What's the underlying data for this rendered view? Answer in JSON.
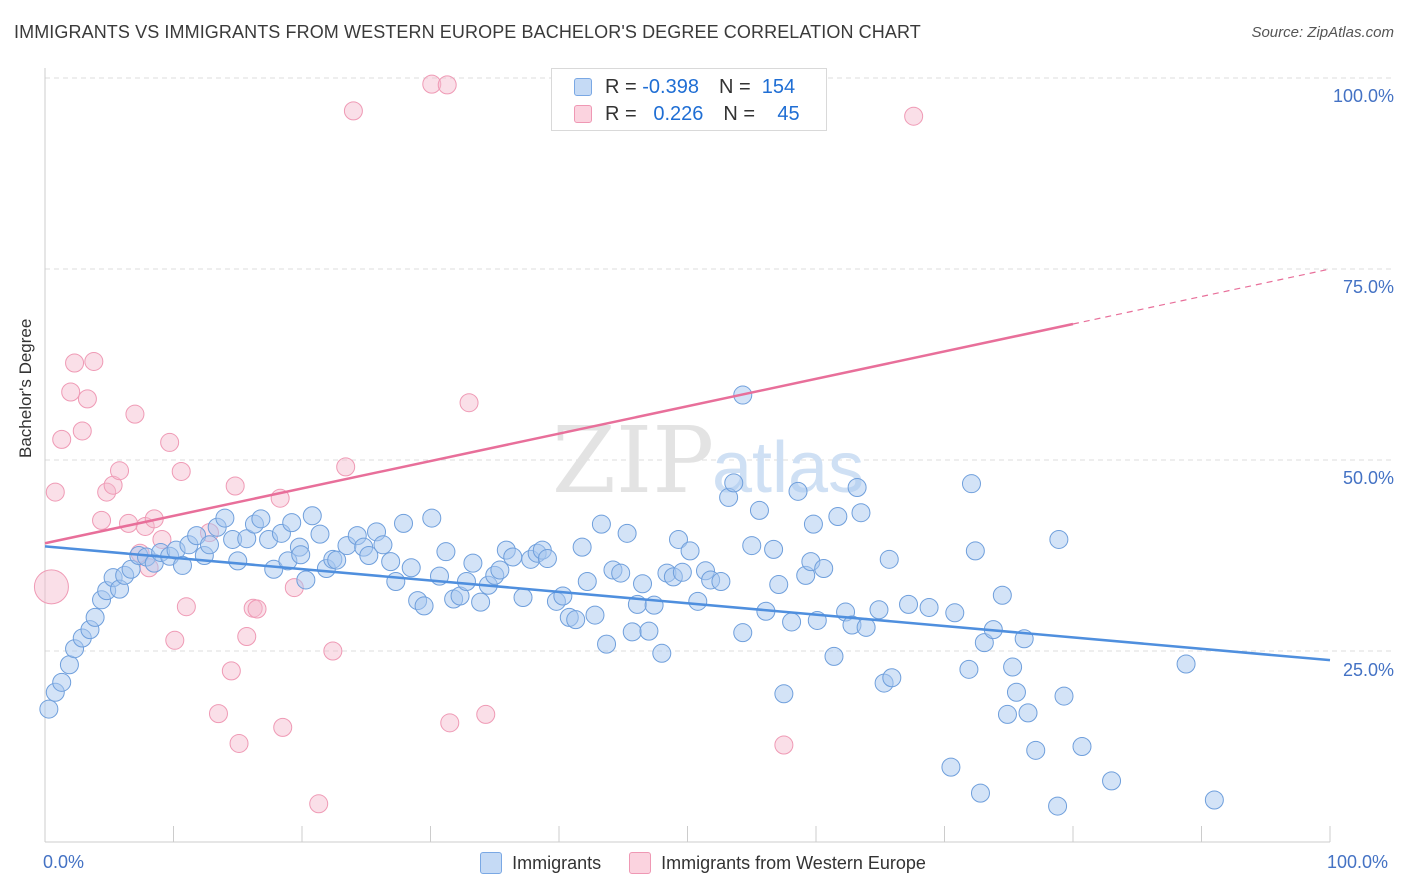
{
  "header": {
    "title": "IMMIGRANTS VS IMMIGRANTS FROM WESTERN EUROPE BACHELOR'S DEGREE CORRELATION CHART",
    "source": "Source: ZipAtlas.com"
  },
  "watermark": {
    "zip": "ZIP",
    "atlas": "atlas"
  },
  "legend": {
    "rows": [
      {
        "r_label": "R =",
        "r_value": "-0.398",
        "n_label": "N =",
        "n_value": "154",
        "color": "#a8c8f0"
      },
      {
        "r_label": "R =",
        "r_value": "0.226",
        "n_label": "N =",
        "n_value": "45",
        "color": "#f5b8cb"
      }
    ]
  },
  "bottom_legend": [
    {
      "label": "Immigrants",
      "color": "#a8c8f0"
    },
    {
      "label": "Immigrants from Western Europe",
      "color": "#f5b8cb"
    }
  ],
  "chart_data": {
    "type": "scatter",
    "title": "IMMIGRANTS VS IMMIGRANTS FROM WESTERN EUROPE BACHELOR'S DEGREE CORRELATION CHART",
    "xlabel": "",
    "ylabel": "Bachelor's Degree",
    "xlim": [
      0,
      100
    ],
    "ylim": [
      0,
      100
    ],
    "x_tick_labels": [
      "0.0%",
      "100.0%"
    ],
    "y_tick_labels": [
      "100.0%",
      "75.0%",
      "50.0%",
      "25.0%"
    ],
    "y_ticks": [
      100,
      75,
      50,
      25
    ],
    "grid": true,
    "legend_position": "top-center",
    "colors": {
      "immigrants": "#4f8fde",
      "western_europe": "#e86f9a"
    },
    "series": [
      {
        "name": "Immigrants",
        "r": -0.398,
        "n": 154,
        "trend": {
          "x": [
            0,
            100
          ],
          "y": [
            38.7,
            23.8
          ]
        },
        "points": [
          [
            0.3,
            17.4
          ],
          [
            0.8,
            19.6
          ],
          [
            1.3,
            20.9
          ],
          [
            1.9,
            23.2
          ],
          [
            2.3,
            25.3
          ],
          [
            2.9,
            26.7
          ],
          [
            3.5,
            27.8
          ],
          [
            3.9,
            29.4
          ],
          [
            4.4,
            31.7
          ],
          [
            4.8,
            32.9
          ],
          [
            5.3,
            34.6
          ],
          [
            5.8,
            33.1
          ],
          [
            6.2,
            34.9
          ],
          [
            6.7,
            35.7
          ],
          [
            7.3,
            37.5
          ],
          [
            7.9,
            37.3
          ],
          [
            8.5,
            36.5
          ],
          [
            9.0,
            37.9
          ],
          [
            9.7,
            37.4
          ],
          [
            10.2,
            38.2
          ],
          [
            10.7,
            36.2
          ],
          [
            11.2,
            38.9
          ],
          [
            11.8,
            40.1
          ],
          [
            12.4,
            37.5
          ],
          [
            12.8,
            38.9
          ],
          [
            13.4,
            41.2
          ],
          [
            14.0,
            42.4
          ],
          [
            14.6,
            39.6
          ],
          [
            15.0,
            36.8
          ],
          [
            15.7,
            39.7
          ],
          [
            16.3,
            41.6
          ],
          [
            16.8,
            42.3
          ],
          [
            17.4,
            39.6
          ],
          [
            17.8,
            35.7
          ],
          [
            18.4,
            40.4
          ],
          [
            18.9,
            36.8
          ],
          [
            19.2,
            41.8
          ],
          [
            19.8,
            38.6
          ],
          [
            20.3,
            34.3
          ],
          [
            20.8,
            42.7
          ],
          [
            21.4,
            40.3
          ],
          [
            21.9,
            35.8
          ],
          [
            22.4,
            37.0
          ],
          [
            22.7,
            36.9
          ],
          [
            23.5,
            38.8
          ],
          [
            24.3,
            40.1
          ],
          [
            24.8,
            38.6
          ],
          [
            25.2,
            37.5
          ],
          [
            25.8,
            40.6
          ],
          [
            26.3,
            38.9
          ],
          [
            26.9,
            36.7
          ],
          [
            27.3,
            34.1
          ],
          [
            27.9,
            41.7
          ],
          [
            28.5,
            35.9
          ],
          [
            29.0,
            31.6
          ],
          [
            29.5,
            30.9
          ],
          [
            30.1,
            42.4
          ],
          [
            30.7,
            34.8
          ],
          [
            31.2,
            38.0
          ],
          [
            31.8,
            31.8
          ],
          [
            32.3,
            32.2
          ],
          [
            32.8,
            34.1
          ],
          [
            33.3,
            36.5
          ],
          [
            33.9,
            31.4
          ],
          [
            34.5,
            33.6
          ],
          [
            35.0,
            34.9
          ],
          [
            35.4,
            35.6
          ],
          [
            35.9,
            38.2
          ],
          [
            36.4,
            37.3
          ],
          [
            37.2,
            32.0
          ],
          [
            37.8,
            37.0
          ],
          [
            38.3,
            37.8
          ],
          [
            38.7,
            38.2
          ],
          [
            39.1,
            37.1
          ],
          [
            39.8,
            31.5
          ],
          [
            40.3,
            32.2
          ],
          [
            40.8,
            29.4
          ],
          [
            41.3,
            29.1
          ],
          [
            41.8,
            38.6
          ],
          [
            42.2,
            34.1
          ],
          [
            42.8,
            29.7
          ],
          [
            43.3,
            41.6
          ],
          [
            43.7,
            25.9
          ],
          [
            44.2,
            35.6
          ],
          [
            44.8,
            35.2
          ],
          [
            45.3,
            40.4
          ],
          [
            45.7,
            27.5
          ],
          [
            46.1,
            31.1
          ],
          [
            46.5,
            33.8
          ],
          [
            47.0,
            27.6
          ],
          [
            47.4,
            31.0
          ],
          [
            48.0,
            24.7
          ],
          [
            48.4,
            35.2
          ],
          [
            48.9,
            34.7
          ],
          [
            49.3,
            39.6
          ],
          [
            49.6,
            35.3
          ],
          [
            50.2,
            38.1
          ],
          [
            50.8,
            31.5
          ],
          [
            51.4,
            35.5
          ],
          [
            51.8,
            34.3
          ],
          [
            52.6,
            34.1
          ],
          [
            53.2,
            45.1
          ],
          [
            53.6,
            47.0
          ],
          [
            54.3,
            27.4
          ],
          [
            55.0,
            38.8
          ],
          [
            55.6,
            43.4
          ],
          [
            56.1,
            30.2
          ],
          [
            56.7,
            38.3
          ],
          [
            57.1,
            33.7
          ],
          [
            57.5,
            19.4
          ],
          [
            58.1,
            28.8
          ],
          [
            58.6,
            45.9
          ],
          [
            59.2,
            34.9
          ],
          [
            59.6,
            36.7
          ],
          [
            60.1,
            29.0
          ],
          [
            60.6,
            35.8
          ],
          [
            61.4,
            24.3
          ],
          [
            61.7,
            42.6
          ],
          [
            62.3,
            30.1
          ],
          [
            62.8,
            28.4
          ],
          [
            63.2,
            46.4
          ],
          [
            63.5,
            43.1
          ],
          [
            63.9,
            28.1
          ],
          [
            64.9,
            30.4
          ],
          [
            65.3,
            20.8
          ],
          [
            65.7,
            37.0
          ],
          [
            65.9,
            21.5
          ],
          [
            67.2,
            31.1
          ],
          [
            68.8,
            30.7
          ],
          [
            70.5,
            9.8
          ],
          [
            70.8,
            30.0
          ],
          [
            71.9,
            22.6
          ],
          [
            72.1,
            46.9
          ],
          [
            72.4,
            38.1
          ],
          [
            72.8,
            6.4
          ],
          [
            73.1,
            26.1
          ],
          [
            73.8,
            27.8
          ],
          [
            74.5,
            32.3
          ],
          [
            74.9,
            16.7
          ],
          [
            75.3,
            22.9
          ],
          [
            75.6,
            19.6
          ],
          [
            76.2,
            26.6
          ],
          [
            76.5,
            16.9
          ],
          [
            77.1,
            12.0
          ],
          [
            78.8,
            4.7
          ],
          [
            78.9,
            39.6
          ],
          [
            79.3,
            19.1
          ],
          [
            80.7,
            12.5
          ],
          [
            83.0,
            8.0
          ],
          [
            88.8,
            23.3
          ],
          [
            91.0,
            5.5
          ],
          [
            54.3,
            58.5
          ],
          [
            59.8,
            41.6
          ],
          [
            19.9,
            37.6
          ]
        ]
      },
      {
        "name": "Immigrants from Western Europe",
        "r": 0.226,
        "n": 45,
        "trend": {
          "x": [
            0,
            80
          ],
          "y": [
            39.1,
            67.8
          ]
        },
        "trend_extension": {
          "x": [
            80,
            100
          ],
          "y": [
            67.8,
            75.0
          ]
        },
        "points": [
          [
            0.5,
            33.4
          ],
          [
            0.8,
            45.8
          ],
          [
            1.3,
            52.7
          ],
          [
            2.0,
            58.9
          ],
          [
            2.3,
            62.7
          ],
          [
            2.9,
            53.8
          ],
          [
            3.3,
            58.0
          ],
          [
            3.8,
            62.9
          ],
          [
            4.4,
            42.1
          ],
          [
            4.8,
            45.8
          ],
          [
            5.3,
            46.7
          ],
          [
            5.8,
            48.6
          ],
          [
            6.5,
            41.7
          ],
          [
            7.0,
            56.0
          ],
          [
            7.4,
            37.8
          ],
          [
            7.8,
            41.3
          ],
          [
            8.1,
            35.9
          ],
          [
            8.5,
            42.3
          ],
          [
            9.1,
            39.6
          ],
          [
            9.7,
            52.3
          ],
          [
            10.1,
            26.4
          ],
          [
            10.6,
            48.5
          ],
          [
            11.0,
            30.8
          ],
          [
            12.8,
            40.5
          ],
          [
            13.5,
            16.8
          ],
          [
            14.5,
            22.4
          ],
          [
            14.8,
            46.6
          ],
          [
            15.1,
            12.9
          ],
          [
            15.7,
            26.9
          ],
          [
            16.2,
            30.6
          ],
          [
            16.5,
            30.5
          ],
          [
            18.3,
            45.0
          ],
          [
            19.4,
            33.3
          ],
          [
            21.3,
            5.0
          ],
          [
            22.4,
            25.0
          ],
          [
            23.4,
            49.1
          ],
          [
            24.0,
            95.7
          ],
          [
            30.1,
            99.2
          ],
          [
            31.5,
            15.6
          ],
          [
            31.3,
            99.1
          ],
          [
            33.0,
            57.5
          ],
          [
            34.3,
            16.7
          ],
          [
            57.5,
            12.7
          ],
          [
            67.6,
            95.0
          ],
          [
            18.5,
            15.0
          ]
        ]
      }
    ]
  }
}
